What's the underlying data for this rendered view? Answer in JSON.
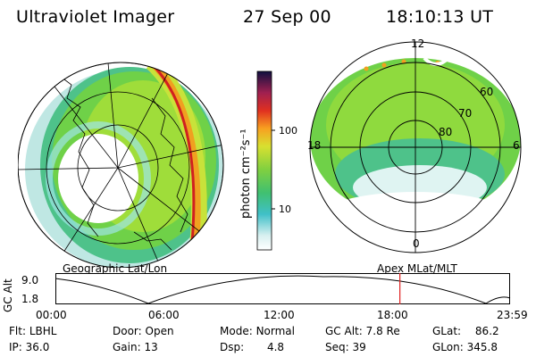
{
  "header": {
    "instrument": "Ultraviolet Imager",
    "date": "27 Sep 00",
    "time": "18:10:13 UT"
  },
  "colorbar": {
    "unit_label": "photon cm⁻²s⁻¹",
    "ticks": [
      "100",
      "10"
    ],
    "log_scale": true
  },
  "left_map": {
    "label": "Geographic Lat/Lon"
  },
  "right_map": {
    "label": "Apex MLat/MLT",
    "mlt_labels": [
      "12",
      "18",
      "6",
      "0"
    ],
    "mlat_labels": [
      "60",
      "70",
      "80"
    ]
  },
  "altitude_plot": {
    "ylabel": "GC Alt",
    "yticks": [
      "9.0",
      "1.8"
    ],
    "xticks": [
      "00:00",
      "06:00",
      "12:00",
      "18:00",
      "23:59"
    ],
    "current_time_hours": 18.17,
    "current_marker_color": "#e02020"
  },
  "info": {
    "filter_label": "Flt:",
    "filter_value": "LBHL",
    "ip_label": "IP:",
    "ip_value": "36.0",
    "door_label": "Door:",
    "door_value": "Open",
    "gain_label": "Gain:",
    "gain_value": "13",
    "mode_label": "Mode:",
    "mode_value": "Normal",
    "dsp_label": "Dsp:",
    "dsp_value": "4.8",
    "gcalt_label": "GC Alt:",
    "gcalt_value": "7.8 Re",
    "seq_label": "Seq:",
    "seq_value": "39",
    "glat_label": "GLat:",
    "glat_value": "86.2",
    "glon_label": "GLon:",
    "glon_value": "345.8"
  }
}
